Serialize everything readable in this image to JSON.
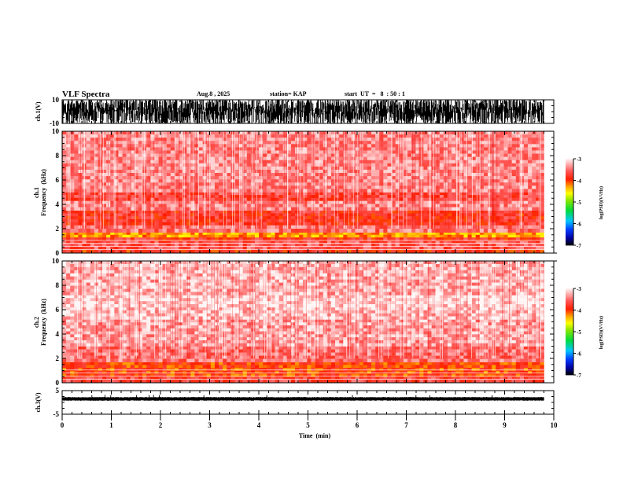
{
  "header": {
    "title": "VLF Spectra",
    "date": "Aug.8  , 2025",
    "station": "station= KAP",
    "start": "start  UT  =   8  : 50 : 1"
  },
  "chart_data": [
    {
      "type": "line",
      "name": "ch1-waveform",
      "ylabel": "ch.1(V)",
      "ylim": [
        -10,
        10
      ],
      "yticks": [
        "10",
        "-10"
      ],
      "xlim": [
        0,
        10
      ],
      "data_end_min": 9.8,
      "description_values": {
        "typical_min": -10,
        "typical_max": 10
      }
    },
    {
      "type": "heatmap",
      "name": "ch1-spectrogram",
      "ylabel": "ch.1\nFrequency (kHz)",
      "ylabel_line1": "ch.1",
      "ylabel_line2": "Frequency  (kHz)",
      "ylim": [
        0,
        10
      ],
      "yticks": [
        "0",
        "2",
        "4",
        "6",
        "8",
        "10"
      ],
      "xlim": [
        0,
        10
      ],
      "data_end_min": 9.8,
      "bands_khz": [
        {
          "from": 0.0,
          "to": 0.3,
          "level": -3.9
        },
        {
          "from": 0.3,
          "to": 1.0,
          "level": -3.6
        },
        {
          "from": 1.0,
          "to": 1.3,
          "level": -3.8
        },
        {
          "from": 1.3,
          "to": 1.7,
          "level": -4.3
        },
        {
          "from": 1.7,
          "to": 2.3,
          "level": -3.5
        },
        {
          "from": 2.3,
          "to": 3.5,
          "level": -3.8
        },
        {
          "from": 3.5,
          "to": 4.3,
          "level": -3.4
        },
        {
          "from": 4.3,
          "to": 5.0,
          "level": -3.7
        },
        {
          "from": 5.0,
          "to": 10.0,
          "level": -3.4
        }
      ],
      "colorbar": {
        "label": "log(PSD)(V²/Hz)",
        "range": [
          -7,
          -3
        ],
        "ticks": [
          "-3",
          "-4",
          "-5",
          "-6",
          "-7"
        ]
      }
    },
    {
      "type": "heatmap",
      "name": "ch2-spectrogram",
      "ylabel_line1": "ch.2",
      "ylabel_line2": "Frequency  (kHz)",
      "ylim": [
        0,
        10
      ],
      "yticks": [
        "0",
        "2",
        "4",
        "6",
        "8",
        "10"
      ],
      "xlim": [
        0,
        10
      ],
      "data_end_min": 9.8,
      "bands_khz": [
        {
          "from": 0.0,
          "to": 0.5,
          "level": -3.7
        },
        {
          "from": 0.5,
          "to": 1.7,
          "level": -4.0
        },
        {
          "from": 1.7,
          "to": 3.0,
          "level": -3.5
        },
        {
          "from": 3.0,
          "to": 5.2,
          "level": -3.3
        },
        {
          "from": 5.2,
          "to": 6.2,
          "level": -3.2
        },
        {
          "from": 6.2,
          "to": 7.2,
          "level": -3.1
        },
        {
          "from": 7.2,
          "to": 10.0,
          "level": -3.25
        }
      ],
      "colorbar": {
        "label": "log(PSD)(V²/Hz)",
        "range": [
          -7,
          -3
        ],
        "ticks": [
          "-3",
          "-4",
          "-5",
          "-6",
          "-7"
        ]
      }
    },
    {
      "type": "line",
      "name": "ch3-waveform",
      "ylabel": "ch.3(V)",
      "ylim": [
        -5,
        5
      ],
      "yticks": [
        "5",
        "-5"
      ],
      "xlim": [
        0,
        10
      ],
      "data_end_min": 9.8,
      "baseline_v": 1.5,
      "xlabel": "Time  (min)",
      "xticks": [
        "0",
        "1",
        "2",
        "3",
        "4",
        "5",
        "6",
        "7",
        "8",
        "9",
        "10"
      ]
    }
  ],
  "colors": {
    "axis": "#000000",
    "trace": "#000000"
  }
}
